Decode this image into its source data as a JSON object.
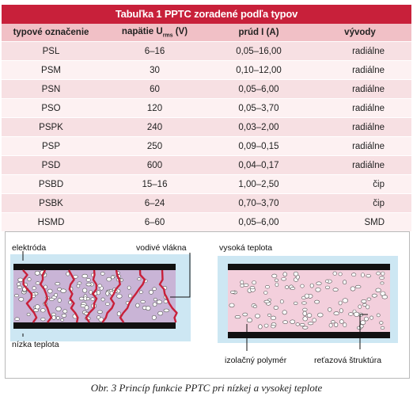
{
  "table": {
    "title": "Tabuľka 1  PPTC zoradené podľa typov",
    "headers": {
      "type": "typové označenie",
      "voltage_main": "napätie U",
      "voltage_sub": "rms",
      "voltage_unit": " (V)",
      "current": "prúd I (A)",
      "leads": "vývody"
    },
    "rows": [
      {
        "type": "PSL",
        "voltage": "6–16",
        "current": "0,05–16,00",
        "leads": "radiálne"
      },
      {
        "type": "PSM",
        "voltage": "30",
        "current": "0,10–12,00",
        "leads": "radiálne"
      },
      {
        "type": "PSN",
        "voltage": "60",
        "current": "0,05–6,00",
        "leads": "radiálne"
      },
      {
        "type": "PSO",
        "voltage": "120",
        "current": "0,05–3,70",
        "leads": "radiálne"
      },
      {
        "type": "PSPK",
        "voltage": "240",
        "current": "0,03–2,00",
        "leads": "radiálne"
      },
      {
        "type": "PSP",
        "voltage": "250",
        "current": "0,09–0,15",
        "leads": "radiálne"
      },
      {
        "type": "PSD",
        "voltage": "600",
        "current": "0,04–0,17",
        "leads": "radiálne"
      },
      {
        "type": "PSBD",
        "voltage": "15–16",
        "current": "1,00–2,50",
        "leads": "čip"
      },
      {
        "type": "PSBK",
        "voltage": "6–24",
        "current": "0,70–3,70",
        "leads": "čip"
      },
      {
        "type": "HSMD",
        "voltage": "6–60",
        "current": "0,05–6,00",
        "leads": "SMD"
      }
    ]
  },
  "figure": {
    "left_labels": {
      "electrode": "elektróda",
      "fibers": "vodivé vlákna",
      "low_temp": "nízka teplota"
    },
    "right_labels": {
      "high_temp": "vysoká teplota",
      "polymer": "izolačný polymér",
      "chain": "reťazová štruktúra"
    },
    "colors": {
      "panel": "#cde7f3",
      "matrix_left": "#c9b4d6",
      "matrix_right": "#f3cfdc",
      "electrode": "#111111",
      "fiber": "#c8203a"
    }
  },
  "caption": "Obr. 3  Princíp funkcie PPTC pri nízkej a vysokej teplote"
}
